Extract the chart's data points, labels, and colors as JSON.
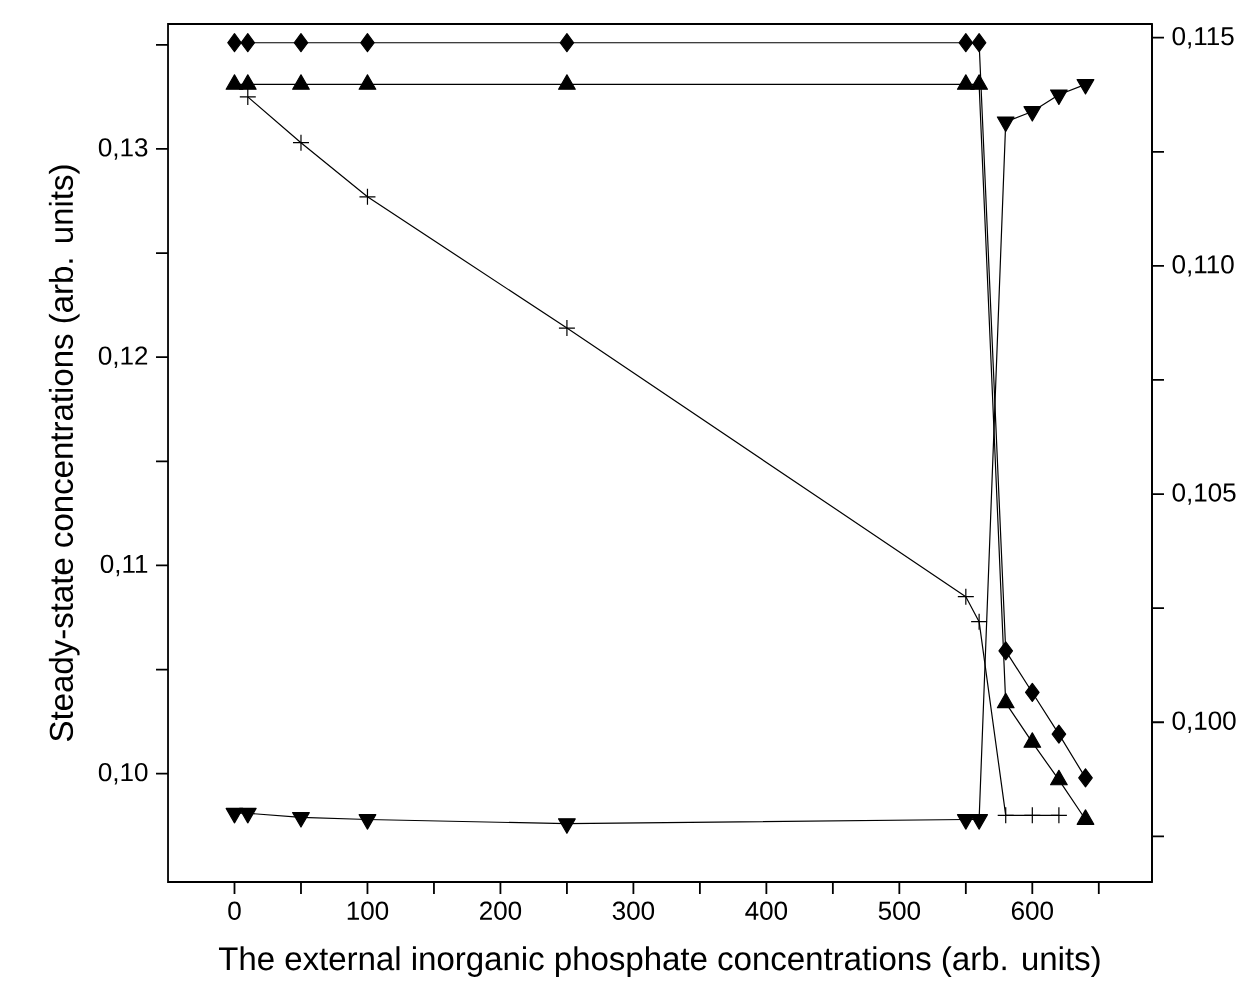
{
  "chart_data": {
    "type": "line",
    "xlabel": "The external inorganic phosphate concentrations (arb. units)",
    "ylabel": "Steady-state concentrations (arb. units)",
    "xlim": [
      -50,
      690
    ],
    "xticks": [
      0,
      {
        "value": 50,
        "label": null
      },
      100,
      {
        "value": 150,
        "label": null
      },
      200,
      {
        "value": 250,
        "label": null
      },
      300,
      {
        "value": 350,
        "label": null
      },
      400,
      {
        "value": 450,
        "label": null
      },
      500,
      {
        "value": 550,
        "label": null
      },
      600,
      {
        "value": 650,
        "label": null
      }
    ],
    "ylim": [
      0.0948,
      0.136
    ],
    "yticks": [
      {
        "value": 0.1,
        "label": "0,10"
      },
      {
        "value": 0.105,
        "label": null
      },
      {
        "value": 0.11,
        "label": "0,11"
      },
      {
        "value": 0.115,
        "label": null
      },
      {
        "value": 0.12,
        "label": "0,12"
      },
      {
        "value": 0.125,
        "label": null
      },
      {
        "value": 0.13,
        "label": "0,13"
      },
      {
        "value": 0.135,
        "label": null
      }
    ],
    "y2lim": [
      0.0965,
      0.1153
    ],
    "y2ticks": [
      {
        "value": 0.0975,
        "label": null
      },
      {
        "value": 0.1,
        "label": "0,100"
      },
      {
        "value": 0.1025,
        "label": null
      },
      {
        "value": 0.105,
        "label": "0,105"
      },
      {
        "value": 0.1075,
        "label": null
      },
      {
        "value": 0.11,
        "label": "0,110"
      },
      {
        "value": 0.1125,
        "label": null
      },
      {
        "value": 0.115,
        "label": "0,115"
      }
    ],
    "grid": false,
    "line_style": "solid",
    "series": [
      {
        "color": "#000000",
        "marker": "diamond",
        "x": [
          0,
          10,
          50,
          100,
          250,
          550,
          560,
          580,
          600,
          620,
          640
        ],
        "values": [
          0.1351,
          0.1351,
          0.1351,
          0.1351,
          0.1351,
          0.1351,
          0.1351,
          0.1059,
          0.1039,
          0.1019,
          0.0998
        ]
      },
      {
        "color": "#000000",
        "marker": "triangle",
        "x": [
          0,
          10,
          50,
          100,
          250,
          550,
          560,
          580,
          600,
          620,
          640
        ],
        "values": [
          0.1331,
          0.1331,
          0.1331,
          0.1331,
          0.1331,
          0.1331,
          0.1331,
          0.1034,
          0.1015,
          0.0997,
          0.0978
        ]
      },
      {
        "color": "#000000",
        "marker": "triangle-down",
        "x": [
          0,
          10,
          50,
          100,
          250,
          550,
          560,
          580,
          600,
          620,
          640
        ],
        "values": [
          0.0981,
          0.0981,
          0.0979,
          0.0978,
          0.0976,
          0.0978,
          0.0978,
          0.1313,
          0.1318,
          0.1326,
          0.1331
        ]
      },
      {
        "color": "#000000",
        "marker": "cross",
        "x": [
          10,
          50,
          100,
          250,
          550,
          560,
          580,
          600,
          620
        ],
        "values": [
          0.1325,
          0.1303,
          0.1277,
          0.1214,
          0.1085,
          0.1073,
          0.098,
          0.098,
          0.098
        ]
      }
    ]
  }
}
